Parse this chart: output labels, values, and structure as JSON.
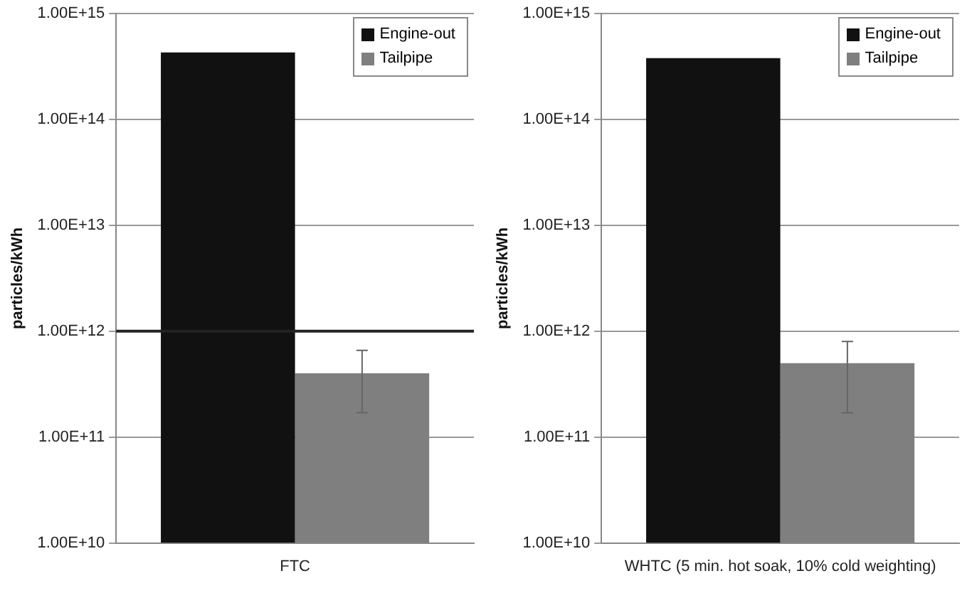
{
  "chart_data": [
    {
      "type": "bar",
      "categories": [
        "FTC"
      ],
      "ylabel": "particles/kWh",
      "log": true,
      "grid": "y",
      "legend": "top right",
      "ylim": [
        10000000000.0,
        1000000000000000.0
      ],
      "yticks": [
        {
          "value": 10000000000.0,
          "label": "1.00E+10"
        },
        {
          "value": 100000000000.0,
          "label": "1.00E+11"
        },
        {
          "value": 1000000000000.0,
          "label": "1.00E+12"
        },
        {
          "value": 10000000000000.0,
          "label": "1.00E+13"
        },
        {
          "value": 100000000000000.0,
          "label": "1.00E+14"
        },
        {
          "value": 1000000000000000.0,
          "label": "1.00E+15"
        }
      ],
      "ref_lines": [
        {
          "axis": "y",
          "value": 1000000000000.0,
          "label": null,
          "color": "#222222"
        }
      ],
      "series": [
        {
          "name": "Engine-out",
          "color": "#111111",
          "values": [
            430000000000000.0
          ]
        },
        {
          "name": "Tailpipe",
          "color": "#7f7f7f",
          "values": [
            400000000000.0
          ],
          "errors": [
            [
              170000000000.0,
              660000000000.0
            ]
          ]
        }
      ]
    },
    {
      "type": "bar",
      "categories": [
        "WHTC (5 min. hot soak, 10% cold weighting)"
      ],
      "ylabel": "particles/kWh",
      "log": true,
      "grid": "y",
      "legend": "top right",
      "ylim": [
        10000000000.0,
        1000000000000000.0
      ],
      "yticks": [
        {
          "value": 10000000000.0,
          "label": "1.00E+10"
        },
        {
          "value": 100000000000.0,
          "label": "1.00E+11"
        },
        {
          "value": 1000000000000.0,
          "label": "1.00E+12"
        },
        {
          "value": 10000000000000.0,
          "label": "1.00E+13"
        },
        {
          "value": 100000000000000.0,
          "label": "1.00E+14"
        },
        {
          "value": 1000000000000000.0,
          "label": "1.00E+15"
        }
      ],
      "series": [
        {
          "name": "Engine-out",
          "color": "#111111",
          "values": [
            380000000000000.0
          ]
        },
        {
          "name": "Tailpipe",
          "color": "#7f7f7f",
          "values": [
            500000000000.0
          ],
          "errors": [
            [
              170000000000.0,
              800000000000.0
            ]
          ]
        }
      ]
    }
  ]
}
